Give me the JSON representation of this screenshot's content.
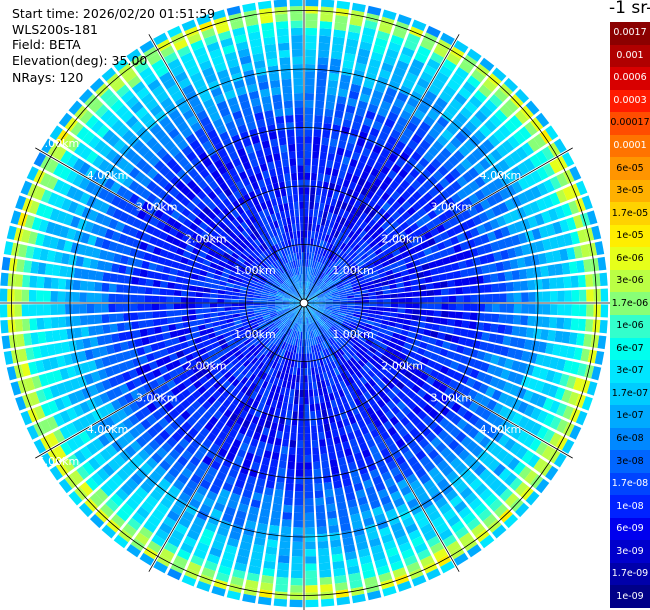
{
  "header": {
    "start_time": "Start time: 2026/02/20 01:51:59",
    "instrument": "WLS200s-181",
    "field": "Field: BETA",
    "elevation": "Elevation(deg): 35.00",
    "nrays": "NRays: 120"
  },
  "colorbar": {
    "title": "-1 sr-",
    "labels": [
      "0.0017",
      "0.001",
      "0.0006",
      "0.0003",
      "0.00017",
      "0.0001",
      "6e-05",
      "3e-05",
      "1.7e-05",
      "1e-05",
      "6e-06",
      "3e-06",
      "1.7e-06",
      "1e-06",
      "6e-07",
      "3e-07",
      "1.7e-07",
      "1e-07",
      "6e-08",
      "3e-08",
      "1.7e-08",
      "1e-08",
      "6e-09",
      "3e-09",
      "1.7e-09",
      "1e-09"
    ],
    "colors": [
      "#8b0000",
      "#b00000",
      "#d80000",
      "#ff1a00",
      "#ff4d00",
      "#ff7300",
      "#ff9500",
      "#ffb000",
      "#ffd200",
      "#ffee00",
      "#e6ff1a",
      "#bbff44",
      "#88ff77",
      "#33ffcc",
      "#00ffee",
      "#00e6ff",
      "#00ccff",
      "#00aaff",
      "#0088ff",
      "#0066ff",
      "#0044ff",
      "#0022ff",
      "#0000ee",
      "#0000cc",
      "#0000aa",
      "#000088"
    ],
    "label_text_color_light": [
      "0.0017",
      "0.001",
      "0.0006",
      "0.0003",
      "0.0001",
      "1.7e-08",
      "1e-08",
      "6e-09",
      "3e-09",
      "1.7e-09",
      "1e-09"
    ]
  },
  "chart_data": {
    "type": "heatmap",
    "projection": "polar (PPI scan)",
    "field": "BETA",
    "elevation_deg": 35.0,
    "nrays": 120,
    "range_ring_labels": [
      "1.00km",
      "2.00km",
      "3.00km",
      "4.00km",
      "5.00km"
    ],
    "range_rings_km": [
      1,
      2,
      3,
      4,
      5
    ],
    "max_range_km": 5.2,
    "radial_profile_log10_beta": [
      {
        "range_km": 0.0,
        "value": -7.0
      },
      {
        "range_km": 1.0,
        "value": -8.0
      },
      {
        "range_km": 2.0,
        "value": -8.1
      },
      {
        "range_km": 3.0,
        "value": -7.9
      },
      {
        "range_km": 4.0,
        "value": -7.0
      },
      {
        "range_km": 4.6,
        "value": -6.6
      },
      {
        "range_km": 5.0,
        "value": -5.3
      },
      {
        "range_km": 5.2,
        "value": -7.5
      }
    ],
    "grid": true,
    "colorbar_position": "right"
  }
}
